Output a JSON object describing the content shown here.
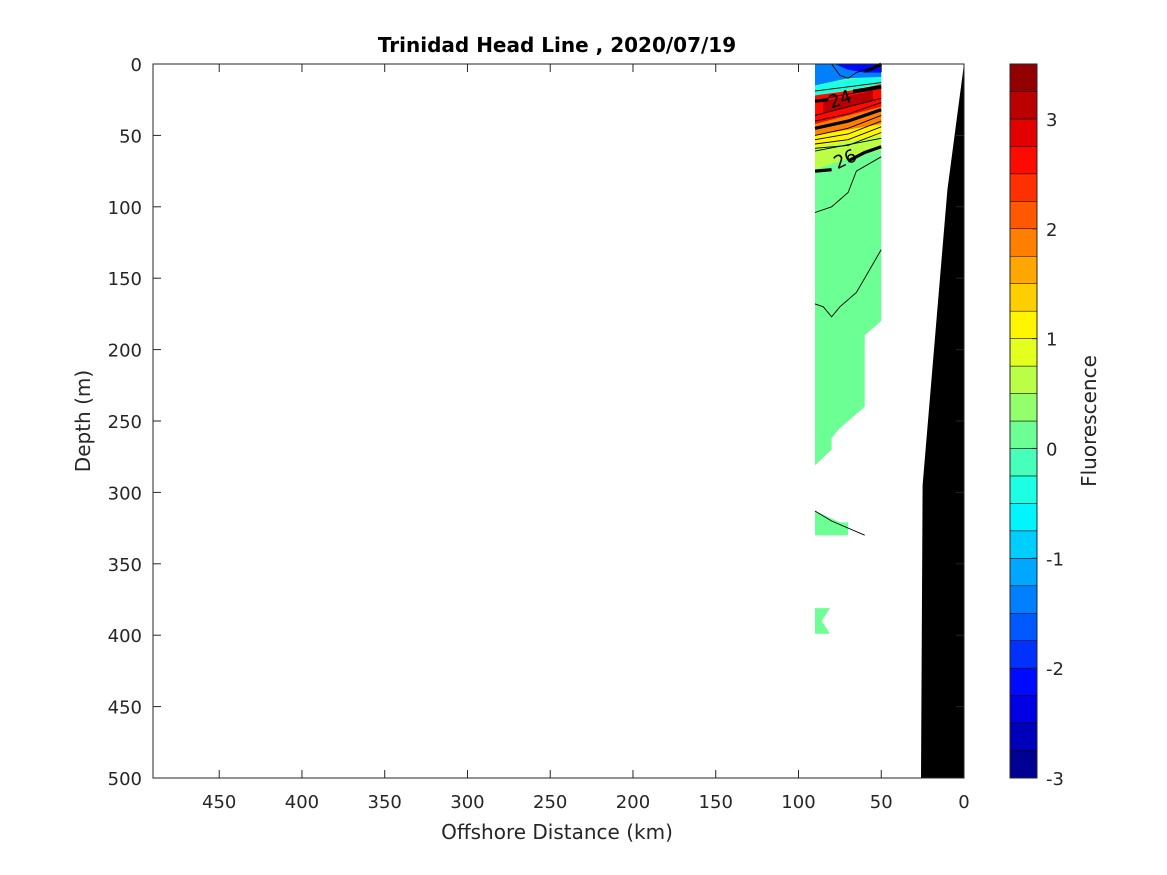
{
  "chart_data": {
    "type": "contour",
    "title": "Trinidad Head Line , 2020/07/19",
    "xlabel": "Offshore Distance (km)",
    "ylabel": "Depth (m)",
    "xlim": [
      490,
      0
    ],
    "ylim": [
      0,
      500
    ],
    "x_reversed": true,
    "y_reversed": true,
    "xticks": [
      450,
      400,
      350,
      300,
      250,
      200,
      150,
      100,
      50,
      0
    ],
    "yticks": [
      0,
      50,
      100,
      150,
      200,
      250,
      300,
      350,
      400,
      450,
      500
    ],
    "colorbar": {
      "label": "Fluorescence",
      "range": [
        -3,
        3.5
      ],
      "ticks": [
        -3,
        -2,
        -1,
        0,
        1,
        2,
        3
      ],
      "step": 0.25,
      "colormap": "jet"
    },
    "contour_labels": [
      {
        "text": "24",
        "x": 75,
        "depth": 24,
        "angle": -18
      },
      {
        "text": "26",
        "x": 72,
        "depth": 66,
        "angle": -25
      }
    ],
    "field": {
      "x_range_km": [
        90,
        50
      ],
      "surface_values": {
        "0-10m": -1.8,
        "10-20m": -0.5,
        "20-45m": 2.2,
        "45-60m": 1.5,
        "60-75m": 0.6,
        "below_75m": 0.1
      }
    },
    "colors": {
      "bathymetry": "#000000",
      "background": "#ffffff"
    }
  }
}
